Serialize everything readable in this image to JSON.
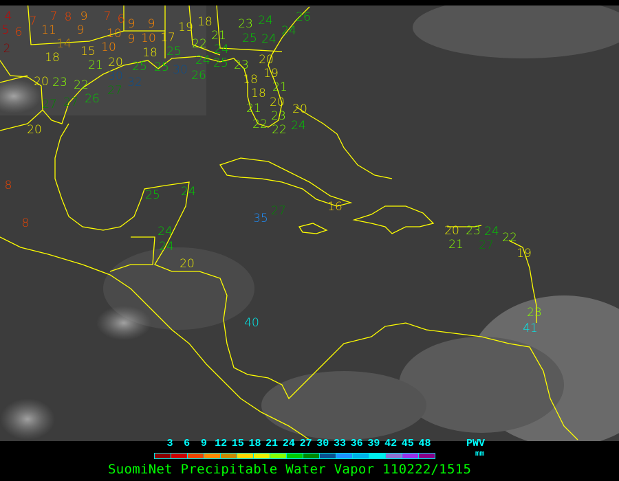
{
  "title": "SuomiNet Precipitable Water Vapor 110222/1515",
  "legend": {
    "label": "PWV",
    "unit": "mm",
    "ticks": [
      "3",
      "6",
      "9",
      "12",
      "15",
      "18",
      "21",
      "24",
      "27",
      "30",
      "33",
      "36",
      "39",
      "42",
      "45",
      "48"
    ],
    "colors": [
      "#8b0000",
      "#cc0000",
      "#ee4400",
      "#ff8800",
      "#cc8800",
      "#ffd700",
      "#eeee00",
      "#88ff00",
      "#00cc00",
      "#008800",
      "#0b4f8f",
      "#1e90ff",
      "#00b0e8",
      "#00eeee",
      "#9070d0",
      "#9b30e8",
      "#880088"
    ]
  },
  "map": {
    "background": "#3a3a3a",
    "coastline_color": "#ffff00",
    "station_values": [
      4,
      5,
      6,
      2,
      7,
      7,
      8,
      9,
      7,
      6,
      11,
      9,
      10,
      9,
      9,
      14,
      10,
      9,
      10,
      17,
      18,
      15,
      20,
      18,
      25,
      25,
      21,
      30,
      32,
      25,
      30,
      20,
      23,
      22,
      26,
      27,
      27,
      27,
      20,
      8,
      8,
      18,
      19,
      21,
      22,
      24,
      24,
      23,
      24,
      25,
      24,
      24,
      26,
      26,
      25,
      23,
      18,
      20,
      19,
      18,
      21,
      20,
      21,
      22,
      23,
      20,
      22,
      24,
      25,
      24,
      16,
      35,
      27,
      20,
      24,
      24,
      40,
      20,
      23,
      24,
      21,
      27,
      22,
      19,
      23,
      41
    ]
  }
}
